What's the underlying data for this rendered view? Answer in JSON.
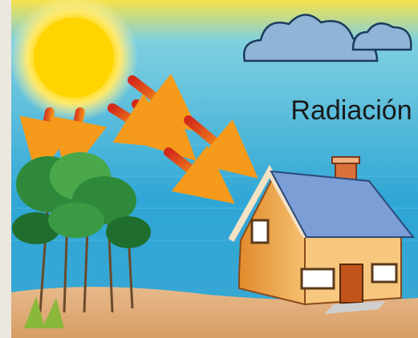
{
  "label": "Radiación"
}
